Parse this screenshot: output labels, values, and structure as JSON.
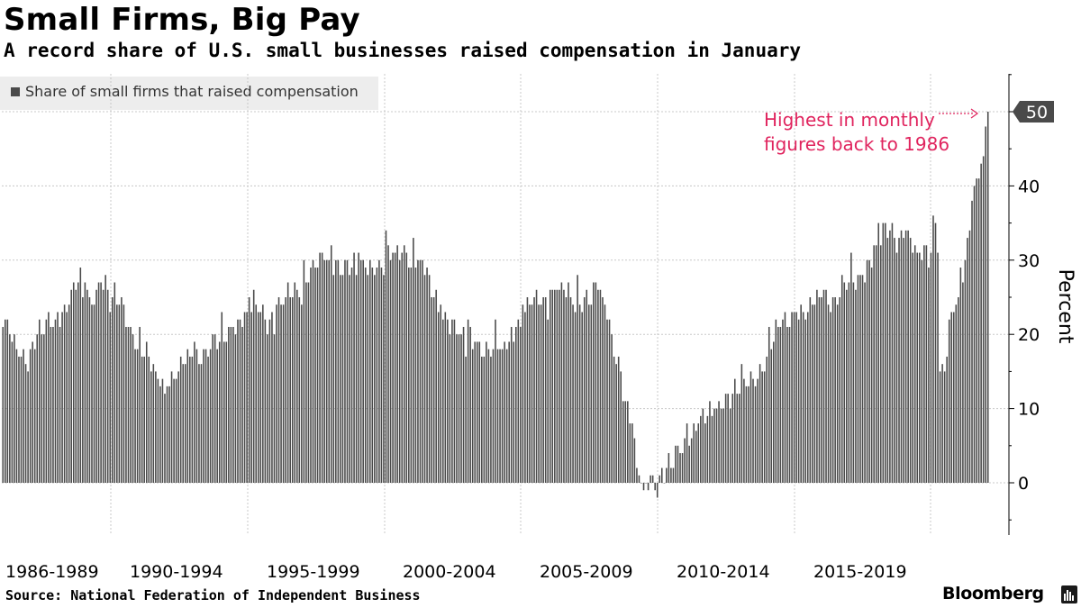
{
  "header": {
    "title": "Small Firms, Big Pay",
    "subtitle": "A record share of U.S. small businesses raised compensation in January"
  },
  "legend": {
    "label": "Share of small firms that raised compensation"
  },
  "footer": {
    "source": "Source: National Federation of Independent Business",
    "brand": "Bloomberg"
  },
  "colors": {
    "bar": "#4a4a4a",
    "annotation": "#e0245e",
    "grid": "#c8c8c8",
    "legend_bg": "#ededed",
    "value_tag_bg": "#4a4a4a"
  },
  "chart_data": {
    "type": "bar",
    "title": "Small Firms, Big Pay",
    "subtitle": "A record share of U.S. small businesses raised compensation in January",
    "ylabel": "Percent",
    "xlabel": "",
    "ylim": [
      -7,
      57
    ],
    "yticks": [
      0,
      10,
      20,
      30,
      40,
      50
    ],
    "grid": true,
    "legend_position": "top-left",
    "x_start": "1986-01",
    "x_end": "2022-01",
    "frequency": "monthly",
    "categories": [
      "1986-1989",
      "1990-1994",
      "1995-1999",
      "2000-2004",
      "2005-2009",
      "2010-2014",
      "2015-2019"
    ],
    "value_label": "50",
    "annotation": {
      "lines": [
        "Highest in monthly",
        "figures back to 1986"
      ]
    },
    "series": [
      {
        "name": "Share of small firms that raised compensation",
        "keypoints": [
          [
            "1986-01",
            21
          ],
          [
            "1986-04",
            20
          ],
          [
            "1986-08",
            17
          ],
          [
            "1987-01",
            18
          ],
          [
            "1987-06",
            20
          ],
          [
            "1988-01",
            23
          ],
          [
            "1988-06",
            24
          ],
          [
            "1988-10",
            27
          ],
          [
            "1989-03",
            25
          ],
          [
            "1989-08",
            27
          ],
          [
            "1990-01",
            25
          ],
          [
            "1990-06",
            24
          ],
          [
            "1990-10",
            20
          ],
          [
            "1991-03",
            17
          ],
          [
            "1991-08",
            15
          ],
          [
            "1992-01",
            13
          ],
          [
            "1992-06",
            15
          ],
          [
            "1992-12",
            17
          ],
          [
            "1993-06",
            18
          ],
          [
            "1993-12",
            19
          ],
          [
            "1994-06",
            21
          ],
          [
            "1994-12",
            23
          ],
          [
            "1995-04",
            24
          ],
          [
            "1995-10",
            22
          ],
          [
            "1996-04",
            24
          ],
          [
            "1996-10",
            26
          ],
          [
            "1997-04",
            29
          ],
          [
            "1997-10",
            30
          ],
          [
            "1998-04",
            30
          ],
          [
            "1998-10",
            29
          ],
          [
            "1999-04",
            29
          ],
          [
            "1999-10",
            30
          ],
          [
            "2000-05",
            31
          ],
          [
            "2000-10",
            31
          ],
          [
            "2001-04",
            30
          ],
          [
            "2001-10",
            25
          ],
          [
            "2002-04",
            22
          ],
          [
            "2002-10",
            20
          ],
          [
            "2003-04",
            19
          ],
          [
            "2003-10",
            18
          ],
          [
            "2004-04",
            18
          ],
          [
            "2004-10",
            21
          ],
          [
            "2005-04",
            24
          ],
          [
            "2005-10",
            25
          ],
          [
            "2006-04",
            26
          ],
          [
            "2006-10",
            25
          ],
          [
            "2007-04",
            25
          ],
          [
            "2007-10",
            26
          ],
          [
            "2008-01",
            24
          ],
          [
            "2008-04",
            20
          ],
          [
            "2008-08",
            15
          ],
          [
            "2008-12",
            8
          ],
          [
            "2009-03",
            2
          ],
          [
            "2009-06",
            -1
          ],
          [
            "2009-09",
            1
          ],
          [
            "2010-01",
            1
          ],
          [
            "2010-06",
            2
          ],
          [
            "2010-12",
            6
          ],
          [
            "2011-06",
            8
          ],
          [
            "2011-12",
            9
          ],
          [
            "2012-06",
            12
          ],
          [
            "2012-12",
            12
          ],
          [
            "2013-06",
            14
          ],
          [
            "2013-12",
            17
          ],
          [
            "2014-06",
            21
          ],
          [
            "2014-12",
            23
          ],
          [
            "2015-06",
            23
          ],
          [
            "2015-12",
            25
          ],
          [
            "2016-06",
            25
          ],
          [
            "2016-12",
            27
          ],
          [
            "2017-06",
            28
          ],
          [
            "2017-12",
            32
          ],
          [
            "2018-06",
            34
          ],
          [
            "2018-12",
            33
          ],
          [
            "2019-06",
            31
          ],
          [
            "2019-12",
            31
          ],
          [
            "2020-02",
            35
          ],
          [
            "2020-03",
            31
          ],
          [
            "2020-04",
            15
          ],
          [
            "2020-06",
            15
          ],
          [
            "2020-09",
            23
          ],
          [
            "2020-12",
            25
          ],
          [
            "2021-03",
            30
          ],
          [
            "2021-06",
            38
          ],
          [
            "2021-09",
            41
          ],
          [
            "2021-11",
            44
          ],
          [
            "2021-12",
            48
          ],
          [
            "2022-01",
            50
          ]
        ]
      }
    ]
  }
}
